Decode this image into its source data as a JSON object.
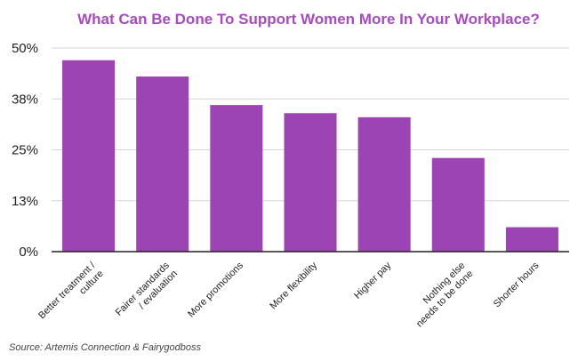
{
  "colors": {
    "bar": "#9C44B4",
    "title": "#A64CC0",
    "grid": "#d6d6d6",
    "axis": "#222222"
  },
  "source": "Source: Artemis Connection & Fairygodboss",
  "chart_data": {
    "type": "bar",
    "title": "What Can Be Done To Support Women More In Your Workplace?",
    "xlabel": "",
    "ylabel": "",
    "categories": [
      [
        "Better treatment /",
        "culture"
      ],
      [
        "Fairer standards",
        "/ evaluation"
      ],
      [
        "More promotions"
      ],
      [
        "More flexibility"
      ],
      [
        "Higher pay"
      ],
      [
        "Nothing else",
        "needs to be done"
      ],
      [
        "Shorter hours"
      ]
    ],
    "values": [
      47,
      43,
      36,
      34,
      33,
      23,
      6
    ],
    "ylim": [
      0,
      50
    ],
    "yticks": [
      0,
      12.5,
      25,
      37.5,
      50
    ],
    "ytick_labels": [
      "0%",
      "13%",
      "25%",
      "38%",
      "50%"
    ],
    "grid": true,
    "legend": "none"
  }
}
